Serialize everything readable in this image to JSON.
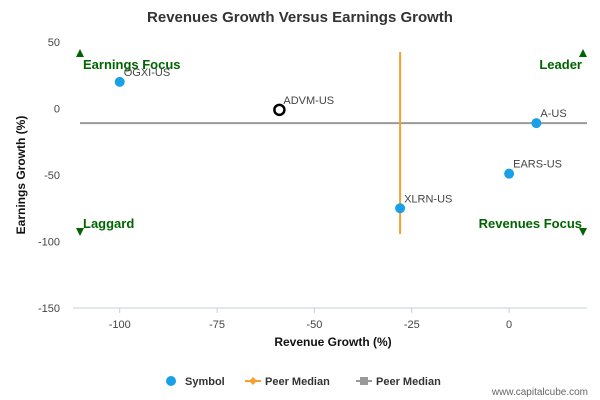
{
  "chart_data": {
    "type": "scatter",
    "title": "Revenues Growth Versus Earnings Growth",
    "xlabel": "Revenue Growth (%)",
    "ylabel": "Earnings Growth (%)",
    "xlim": [
      -112,
      20
    ],
    "ylim": [
      -150,
      50
    ],
    "x_ticks": [
      -100,
      -75,
      -50,
      -25,
      0
    ],
    "y_ticks": [
      50,
      0,
      -50,
      -100,
      -150
    ],
    "points": [
      {
        "label": "OGXI-US",
        "x": -100,
        "y": 20,
        "highlight": false
      },
      {
        "label": "ADVM-US",
        "x": -59,
        "y": -1,
        "highlight": true
      },
      {
        "label": "A-US",
        "x": 7,
        "y": -11,
        "highlight": false
      },
      {
        "label": "EARS-US",
        "x": 0,
        "y": -49,
        "highlight": false
      },
      {
        "label": "XLRN-US",
        "x": -28,
        "y": -75,
        "highlight": false
      }
    ],
    "peer_median_revenue": -28,
    "peer_median_earnings": -11,
    "quadrants": {
      "top_left": "Earnings Focus",
      "top_right": "Leader",
      "bottom_left": "Laggard",
      "bottom_right": "Revenues Focus"
    },
    "legend": {
      "position": "bottom",
      "items": [
        {
          "name": "Symbol",
          "color": "#1aa0e8"
        },
        {
          "name": "Peer Median",
          "color": "#f7a030"
        },
        {
          "name": "Peer Median",
          "color": "#999999"
        }
      ]
    },
    "colors": {
      "point": "#1aa0e8",
      "highlight_stroke": "#000000",
      "vertical_median": "#f7a030",
      "horizontal_median": "#999999",
      "quadrant_text": "#006400"
    }
  },
  "credit": "www.capitalcube.com"
}
